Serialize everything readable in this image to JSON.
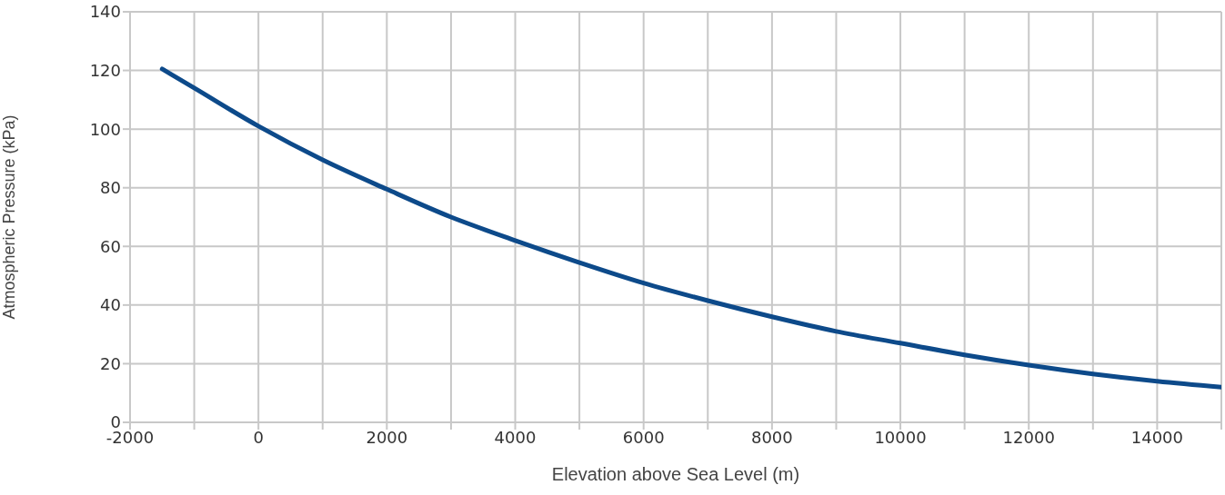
{
  "chart_data": {
    "type": "line",
    "xlabel": "Elevation above Sea Level (m)",
    "ylabel": "Atmospheric Pressure (kPa)",
    "x": [
      -1500,
      -1000,
      0,
      1000,
      2000,
      3000,
      4000,
      5000,
      6000,
      7000,
      8000,
      9000,
      10000,
      11000,
      12000,
      13000,
      14000,
      15000
    ],
    "series": [
      {
        "color": "#0d4a8a",
        "values": [
          120.5,
          114,
          101,
          89.5,
          79.5,
          70,
          62,
          54.5,
          47.5,
          41.5,
          36,
          31,
          27,
          23,
          19.5,
          16.5,
          14,
          12
        ]
      }
    ],
    "xlim": [
      -2000,
      15000
    ],
    "xticks": [
      -2000,
      {
        "value": -1000,
        "label": null
      },
      0,
      {
        "value": 1000,
        "label": null
      },
      2000,
      {
        "value": 3000,
        "label": null
      },
      4000,
      {
        "value": 5000,
        "label": null
      },
      6000,
      {
        "value": 7000,
        "label": null
      },
      8000,
      {
        "value": 9000,
        "label": null
      },
      10000,
      {
        "value": 11000,
        "label": null
      },
      12000,
      {
        "value": 13000,
        "label": null
      },
      14000,
      {
        "value": 15000,
        "label": null
      }
    ],
    "ylim": [
      0,
      140
    ],
    "yticks": [
      0,
      20,
      40,
      60,
      80,
      100,
      120,
      140
    ],
    "grid": true,
    "marker": "none",
    "line_style": "solid"
  }
}
